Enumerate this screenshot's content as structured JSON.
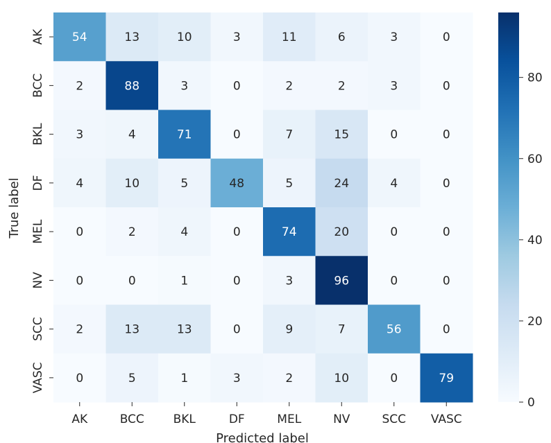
{
  "chart_data": {
    "type": "heatmap",
    "title": "",
    "xlabel": "Predicted label",
    "ylabel": "True label",
    "x_categories": [
      "AK",
      "BCC",
      "BKL",
      "DF",
      "MEL",
      "NV",
      "SCC",
      "VASC"
    ],
    "y_categories": [
      "AK",
      "BCC",
      "BKL",
      "DF",
      "MEL",
      "NV",
      "SCC",
      "VASC"
    ],
    "values": [
      [
        54,
        13,
        10,
        3,
        11,
        6,
        3,
        0
      ],
      [
        2,
        88,
        3,
        0,
        2,
        2,
        3,
        0
      ],
      [
        3,
        4,
        71,
        0,
        7,
        15,
        0,
        0
      ],
      [
        4,
        10,
        5,
        48,
        5,
        24,
        4,
        0
      ],
      [
        0,
        2,
        4,
        0,
        74,
        20,
        0,
        0
      ],
      [
        0,
        0,
        1,
        0,
        3,
        96,
        0,
        0
      ],
      [
        2,
        13,
        13,
        0,
        9,
        7,
        56,
        0
      ],
      [
        0,
        5,
        1,
        3,
        2,
        10,
        0,
        79
      ]
    ],
    "colorbar": {
      "colormap": "Blues",
      "range": [
        0,
        96
      ],
      "ticks": [
        0,
        20,
        40,
        60,
        80
      ],
      "tick_labels": [
        "0",
        "20",
        "40",
        "60",
        "80"
      ]
    },
    "colors": {
      "low": "#f7fbff",
      "high": "#08306b",
      "light_text": "#ffffff",
      "dark_text": "#262626"
    }
  }
}
